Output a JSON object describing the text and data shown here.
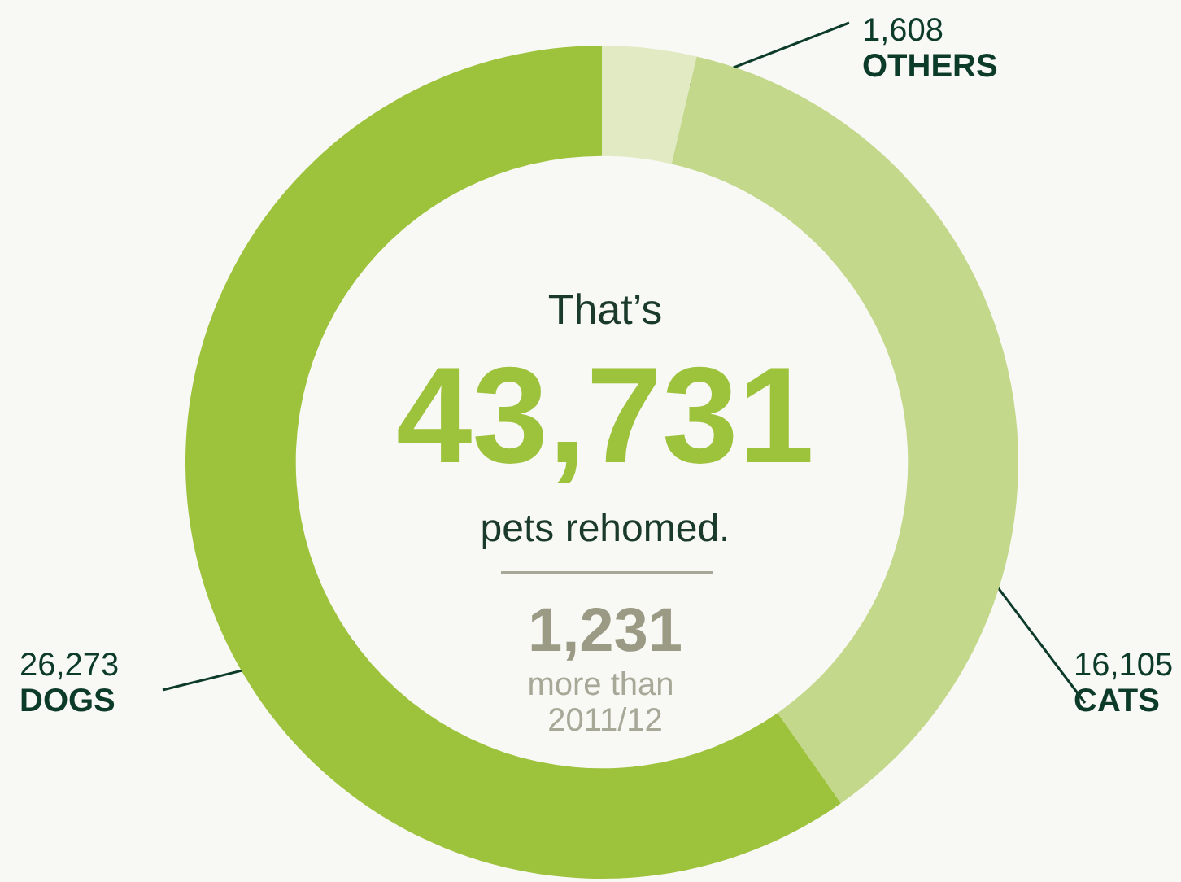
{
  "chart_data": {
    "type": "donut",
    "categories": [
      "OTHERS",
      "CATS",
      "DOGS"
    ],
    "values": [
      1608,
      16105,
      26273
    ],
    "colors": [
      "#e1eac3",
      "#c3d88a",
      "#9dc23b"
    ],
    "value_labels": [
      "1,608",
      "16,105",
      "26,273"
    ],
    "annotations": [
      "That’s",
      "43,731",
      "pets rehomed.",
      "1,231",
      "more than 2011/12"
    ]
  }
}
